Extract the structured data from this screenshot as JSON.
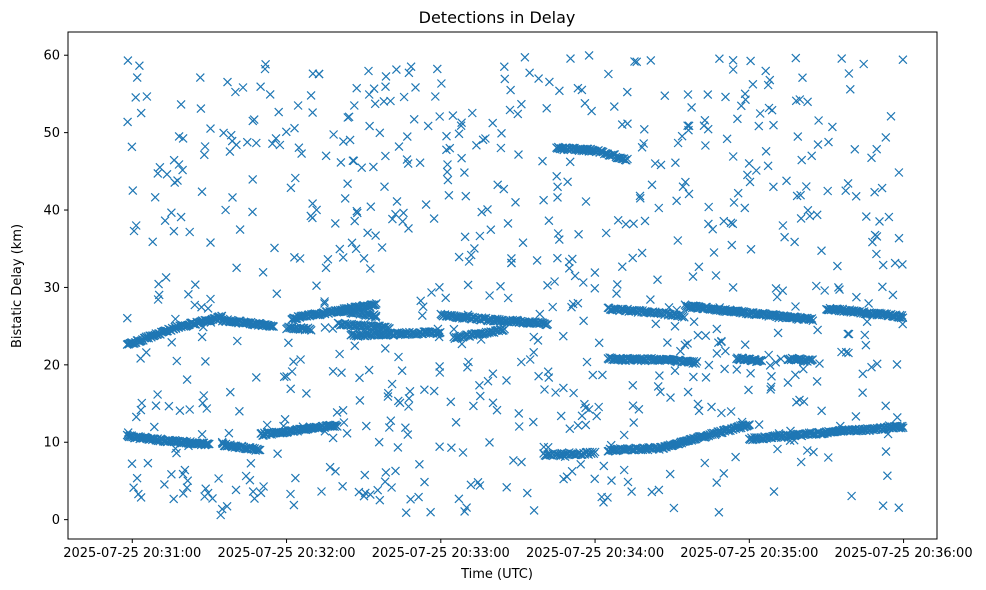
{
  "chart_data": {
    "type": "scatter",
    "title": "Detections in Delay",
    "xlabel": "Time (UTC)",
    "ylabel": "Bistatic Delay (km)",
    "marker": "x",
    "color": "#1f77b4",
    "grid": false,
    "xlim": [
      "2025-07-25 20:30:35",
      "2025-07-25 20:36:13"
    ],
    "ylim": [
      -2.5,
      63
    ],
    "xticks": [
      "2025-07-25 20:31:00",
      "2025-07-25 20:32:00",
      "2025-07-25 20:33:00",
      "2025-07-25 20:34:00",
      "2025-07-25 20:35:00",
      "2025-07-25 20:36:00"
    ],
    "yticks": [
      0,
      10,
      20,
      30,
      40,
      50,
      60
    ],
    "tracks": [
      {
        "t_start": "2025-07-25 20:30:58",
        "t_end": "2025-07-25 20:31:17",
        "delay_start": 22.6,
        "delay_end": 24.8,
        "step_s": 0.35
      },
      {
        "t_start": "2025-07-25 20:31:17",
        "t_end": "2025-07-25 20:31:35",
        "delay_start": 24.8,
        "delay_end": 26.2,
        "step_s": 0.35
      },
      {
        "t_start": "2025-07-25 20:31:35",
        "t_end": "2025-07-25 20:31:55",
        "delay_start": 25.8,
        "delay_end": 25.0,
        "step_s": 0.35
      },
      {
        "t_start": "2025-07-25 20:32:00",
        "t_end": "2025-07-25 20:32:10",
        "delay_start": 24.8,
        "delay_end": 24.6,
        "step_s": 0.4
      },
      {
        "t_start": "2025-07-25 20:32:02",
        "t_end": "2025-07-25 20:32:35",
        "delay_start": 26.0,
        "delay_end": 27.8,
        "step_s": 0.35
      },
      {
        "t_start": "2025-07-25 20:32:20",
        "t_end": "2025-07-25 20:32:35",
        "delay_start": 27.0,
        "delay_end": 26.3,
        "step_s": 0.45
      },
      {
        "t_start": "2025-07-25 20:32:20",
        "t_end": "2025-07-25 20:32:40",
        "delay_start": 25.3,
        "delay_end": 24.8,
        "step_s": 0.45
      },
      {
        "t_start": "2025-07-25 20:32:25",
        "t_end": "2025-07-25 20:33:00",
        "delay_start": 23.8,
        "delay_end": 24.2,
        "step_s": 0.4
      },
      {
        "t_start": "2025-07-25 20:33:00",
        "t_end": "2025-07-25 20:33:20",
        "delay_start": 26.4,
        "delay_end": 25.8,
        "step_s": 0.4
      },
      {
        "t_start": "2025-07-25 20:33:05",
        "t_end": "2025-07-25 20:33:25",
        "delay_start": 23.5,
        "delay_end": 24.5,
        "step_s": 0.45
      },
      {
        "t_start": "2025-07-25 20:33:20",
        "t_end": "2025-07-25 20:33:42",
        "delay_start": 25.8,
        "delay_end": 25.3,
        "step_s": 0.4
      },
      {
        "t_start": "2025-07-25 20:33:45",
        "t_end": "2025-07-25 20:34:00",
        "delay_start": 48.0,
        "delay_end": 47.7,
        "step_s": 0.35
      },
      {
        "t_start": "2025-07-25 20:34:00",
        "t_end": "2025-07-25 20:34:13",
        "delay_start": 47.7,
        "delay_end": 46.5,
        "step_s": 0.45
      },
      {
        "t_start": "2025-07-25 20:34:05",
        "t_end": "2025-07-25 20:34:20",
        "delay_start": 20.8,
        "delay_end": 20.6,
        "step_s": 0.35
      },
      {
        "t_start": "2025-07-25 20:34:20",
        "t_end": "2025-07-25 20:34:40",
        "delay_start": 20.8,
        "delay_end": 20.3,
        "step_s": 0.4
      },
      {
        "t_start": "2025-07-25 20:34:55",
        "t_end": "2025-07-25 20:35:05",
        "delay_start": 20.8,
        "delay_end": 20.5,
        "step_s": 0.35
      },
      {
        "t_start": "2025-07-25 20:35:15",
        "t_end": "2025-07-25 20:35:25",
        "delay_start": 20.8,
        "delay_end": 20.5,
        "step_s": 0.4
      },
      {
        "t_start": "2025-07-25 20:34:05",
        "t_end": "2025-07-25 20:34:35",
        "delay_start": 27.3,
        "delay_end": 26.3,
        "step_s": 0.45
      },
      {
        "t_start": "2025-07-25 20:34:35",
        "t_end": "2025-07-25 20:35:25",
        "delay_start": 27.6,
        "delay_end": 25.8,
        "step_s": 0.35
      },
      {
        "t_start": "2025-07-25 20:35:30",
        "t_end": "2025-07-25 20:36:00",
        "delay_start": 27.3,
        "delay_end": 26.2,
        "step_s": 0.35
      },
      {
        "t_start": "2025-07-25 20:30:58",
        "t_end": "2025-07-25 20:31:10",
        "delay_start": 10.8,
        "delay_end": 10.3,
        "step_s": 0.35
      },
      {
        "t_start": "2025-07-25 20:31:10",
        "t_end": "2025-07-25 20:31:30",
        "delay_start": 10.3,
        "delay_end": 9.7,
        "step_s": 0.35
      },
      {
        "t_start": "2025-07-25 20:31:35",
        "t_end": "2025-07-25 20:31:50",
        "delay_start": 9.7,
        "delay_end": 9.0,
        "step_s": 0.35
      },
      {
        "t_start": "2025-07-25 20:31:50",
        "t_end": "2025-07-25 20:32:20",
        "delay_start": 11.0,
        "delay_end": 12.2,
        "step_s": 0.35
      },
      {
        "t_start": "2025-07-25 20:33:40",
        "t_end": "2025-07-25 20:34:00",
        "delay_start": 8.4,
        "delay_end": 8.6,
        "step_s": 0.5
      },
      {
        "t_start": "2025-07-25 20:34:05",
        "t_end": "2025-07-25 20:34:25",
        "delay_start": 9.0,
        "delay_end": 9.2,
        "step_s": 0.4
      },
      {
        "t_start": "2025-07-25 20:34:25",
        "t_end": "2025-07-25 20:35:00",
        "delay_start": 9.2,
        "delay_end": 12.3,
        "step_s": 0.35
      },
      {
        "t_start": "2025-07-25 20:35:00",
        "t_end": "2025-07-25 20:35:35",
        "delay_start": 10.4,
        "delay_end": 11.4,
        "step_s": 0.4
      },
      {
        "t_start": "2025-07-25 20:35:35",
        "t_end": "2025-07-25 20:36:00",
        "delay_start": 11.4,
        "delay_end": 12.0,
        "step_s": 0.35
      }
    ],
    "background": {
      "t_start": "2025-07-25 20:30:58",
      "t_end": "2025-07-25 20:36:00",
      "delay_min": 0.5,
      "delay_max": 60,
      "count": 760
    }
  }
}
